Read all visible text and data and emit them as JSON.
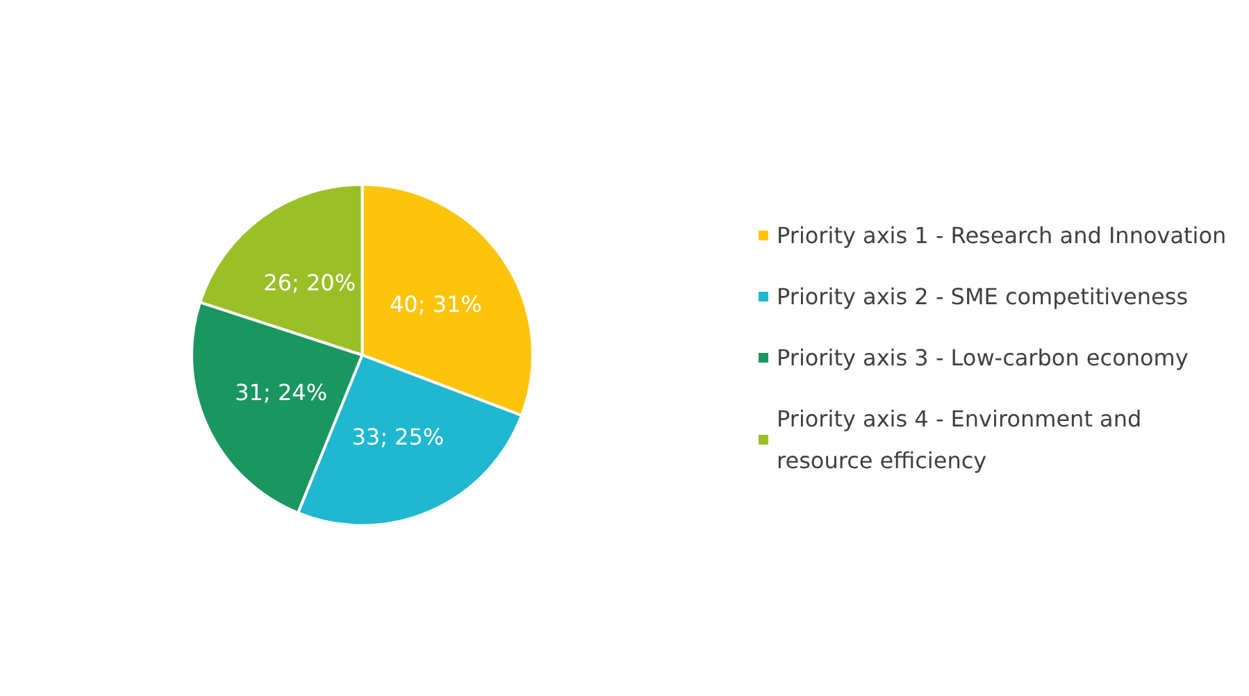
{
  "chart_data": {
    "type": "pie",
    "categories": [
      "Priority axis 1 - Research and Innovation",
      "Priority axis 2 - SME competitiveness",
      "Priority axis 3 - Low-carbon economy",
      "Priority axis 4 - Environment and resource efficiency"
    ],
    "values": [
      40,
      33,
      31,
      26
    ],
    "colors": [
      "#fcc50c",
      "#1fb8d0",
      "#1a9660",
      "#9bbf27"
    ],
    "value_labels": [
      "40; 31%",
      "33; 25%",
      "31; 24%",
      "26; 20%"
    ],
    "legend": "right"
  }
}
